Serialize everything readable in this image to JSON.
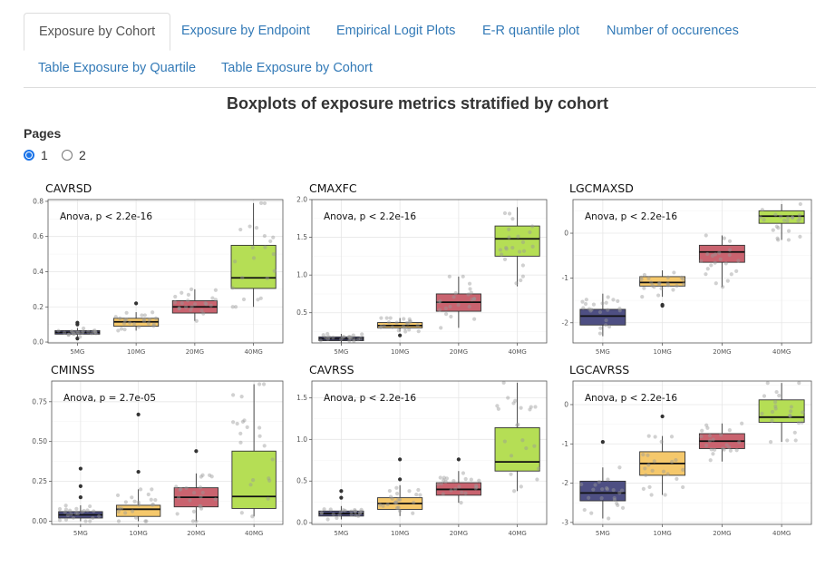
{
  "tabs": [
    {
      "label": "Exposure by Cohort",
      "active": true
    },
    {
      "label": "Exposure by Endpoint",
      "active": false
    },
    {
      "label": "Empirical Logit Plots",
      "active": false
    },
    {
      "label": "E-R quantile plot",
      "active": false
    },
    {
      "label": "Number of occurences",
      "active": false
    },
    {
      "label": "Table Exposure by Quartile",
      "active": false
    },
    {
      "label": "Table Exposure by Cohort",
      "active": false
    }
  ],
  "title": "Boxplots of exposure metrics stratified by cohort",
  "pages": {
    "label": "Pages",
    "options": [
      "1",
      "2"
    ],
    "selected": "1"
  },
  "colors": {
    "tab_link": "#337ab7",
    "radio_accent": "#1a73e8",
    "box_fills": [
      "#4e4f83",
      "#f5c86b",
      "#c9636f",
      "#b5de55"
    ]
  },
  "chart_data": [
    {
      "type": "boxplot",
      "title": "CAVRSD",
      "categories": [
        "5MG",
        "10MG",
        "20MG",
        "40MG"
      ],
      "annotation": "Anova, p < 2.2e-16",
      "ylim": [
        -0.005,
        0.81
      ],
      "yticks": [
        0.0,
        0.2,
        0.4,
        0.6,
        0.8
      ],
      "ytick_labels": [
        "0.0",
        "0.2",
        "0.4",
        "0.6",
        "0.8"
      ],
      "boxes": [
        {
          "q1": 0.045,
          "median": 0.055,
          "q3": 0.065,
          "whisker_low": 0.03,
          "whisker_high": 0.08,
          "outliers": [
            0.1,
            0.11,
            0.02
          ]
        },
        {
          "q1": 0.09,
          "median": 0.115,
          "q3": 0.135,
          "whisker_low": 0.065,
          "whisker_high": 0.17,
          "outliers": [
            0.22
          ]
        },
        {
          "q1": 0.165,
          "median": 0.2,
          "q3": 0.235,
          "whisker_low": 0.12,
          "whisker_high": 0.3,
          "outliers": []
        },
        {
          "q1": 0.305,
          "median": 0.365,
          "q3": 0.55,
          "whisker_low": 0.2,
          "whisker_high": 0.79,
          "outliers": []
        }
      ]
    },
    {
      "type": "boxplot",
      "title": "CMAXFC",
      "categories": [
        "5MG",
        "10MG",
        "20MG",
        "40MG"
      ],
      "annotation": "Anova, p < 2.2e-16",
      "ylim": [
        0.1,
        2.0
      ],
      "yticks": [
        0.5,
        1.0,
        1.5,
        2.0
      ],
      "ytick_labels": [
        "0.5",
        "1.0",
        "1.5",
        "2.0"
      ],
      "boxes": [
        {
          "q1": 0.13,
          "median": 0.155,
          "q3": 0.18,
          "whisker_low": 0.1,
          "whisker_high": 0.22,
          "outliers": []
        },
        {
          "q1": 0.3,
          "median": 0.33,
          "q3": 0.37,
          "whisker_low": 0.25,
          "whisker_high": 0.43,
          "outliers": [
            0.2
          ]
        },
        {
          "q1": 0.52,
          "median": 0.64,
          "q3": 0.75,
          "whisker_low": 0.3,
          "whisker_high": 0.98,
          "outliers": []
        },
        {
          "q1": 1.25,
          "median": 1.48,
          "q3": 1.65,
          "whisker_low": 0.85,
          "whisker_high": 1.9,
          "outliers": []
        }
      ]
    },
    {
      "type": "boxplot",
      "title": "LGCMAXSD",
      "categories": [
        "5MG",
        "10MG",
        "20MG",
        "40MG"
      ],
      "annotation": "Anova, p < 2.2e-16",
      "ylim": [
        -2.45,
        0.75
      ],
      "yticks": [
        -2,
        -1,
        0
      ],
      "ytick_labels": [
        "-2",
        "-1",
        "0"
      ],
      "boxes": [
        {
          "q1": -2.05,
          "median": -1.85,
          "q3": -1.7,
          "whisker_low": -2.3,
          "whisker_high": -1.35,
          "outliers": []
        },
        {
          "q1": -1.18,
          "median": -1.1,
          "q3": -0.97,
          "whisker_low": -1.42,
          "whisker_high": -0.83,
          "outliers": [
            -1.62,
            -1.6
          ]
        },
        {
          "q1": -0.65,
          "median": -0.42,
          "q3": -0.27,
          "whisker_low": -1.2,
          "whisker_high": -0.05,
          "outliers": []
        },
        {
          "q1": 0.22,
          "median": 0.38,
          "q3": 0.5,
          "whisker_low": -0.15,
          "whisker_high": 0.65,
          "outliers": []
        }
      ]
    },
    {
      "type": "boxplot",
      "title": "CMINSS",
      "categories": [
        "5MG",
        "10MG",
        "20MG",
        "40MG"
      ],
      "annotation": "Anova, p = 2.7e-05",
      "ylim": [
        -0.02,
        0.88
      ],
      "yticks": [
        0.0,
        0.25,
        0.5,
        0.75
      ],
      "ytick_labels": [
        "0.00",
        "0.25",
        "0.50",
        "0.75"
      ],
      "boxes": [
        {
          "q1": 0.02,
          "median": 0.04,
          "q3": 0.06,
          "whisker_low": 0.0,
          "whisker_high": 0.1,
          "outliers": [
            0.33,
            0.22,
            0.15
          ]
        },
        {
          "q1": 0.03,
          "median": 0.075,
          "q3": 0.1,
          "whisker_low": 0.0,
          "whisker_high": 0.2,
          "outliers": [
            0.67,
            0.31
          ]
        },
        {
          "q1": 0.09,
          "median": 0.15,
          "q3": 0.21,
          "whisker_low": 0.0,
          "whisker_high": 0.3,
          "outliers": [
            0.44
          ]
        },
        {
          "q1": 0.08,
          "median": 0.155,
          "q3": 0.44,
          "whisker_low": 0.03,
          "whisker_high": 0.86,
          "outliers": []
        }
      ]
    },
    {
      "type": "boxplot",
      "title": "CAVRSS",
      "categories": [
        "5MG",
        "10MG",
        "20MG",
        "40MG"
      ],
      "annotation": "Anova, p < 2.2e-16",
      "ylim": [
        -0.02,
        1.7
      ],
      "yticks": [
        0.0,
        0.5,
        1.0,
        1.5
      ],
      "ytick_labels": [
        "0.0",
        "0.5",
        "1.0",
        "1.5"
      ],
      "boxes": [
        {
          "q1": 0.08,
          "median": 0.11,
          "q3": 0.14,
          "whisker_low": 0.04,
          "whisker_high": 0.2,
          "outliers": [
            0.38,
            0.3
          ]
        },
        {
          "q1": 0.16,
          "median": 0.23,
          "q3": 0.3,
          "whisker_low": 0.08,
          "whisker_high": 0.45,
          "outliers": [
            0.76,
            0.52
          ]
        },
        {
          "q1": 0.33,
          "median": 0.4,
          "q3": 0.48,
          "whisker_low": 0.24,
          "whisker_high": 0.62,
          "outliers": [
            0.76
          ]
        },
        {
          "q1": 0.62,
          "median": 0.73,
          "q3": 1.14,
          "whisker_low": 0.38,
          "whisker_high": 1.68,
          "outliers": []
        }
      ]
    },
    {
      "type": "boxplot",
      "title": "LGCAVRSS",
      "categories": [
        "5MG",
        "10MG",
        "20MG",
        "40MG"
      ],
      "annotation": "Anova, p < 2.2e-16",
      "ylim": [
        -3.05,
        0.6
      ],
      "yticks": [
        -3,
        -2,
        -1,
        0
      ],
      "ytick_labels": [
        "-3",
        "-2",
        "-1",
        "0"
      ],
      "boxes": [
        {
          "q1": -2.45,
          "median": -2.25,
          "q3": -1.95,
          "whisker_low": -2.9,
          "whisker_high": -1.6,
          "outliers": [
            -0.95
          ]
        },
        {
          "q1": -1.8,
          "median": -1.5,
          "q3": -1.2,
          "whisker_low": -2.3,
          "whisker_high": -0.8,
          "outliers": [
            -0.3
          ]
        },
        {
          "q1": -1.12,
          "median": -0.93,
          "q3": -0.74,
          "whisker_low": -1.45,
          "whisker_high": -0.48,
          "outliers": []
        },
        {
          "q1": -0.45,
          "median": -0.32,
          "q3": 0.12,
          "whisker_low": -0.95,
          "whisker_high": 0.55,
          "outliers": []
        }
      ]
    }
  ]
}
